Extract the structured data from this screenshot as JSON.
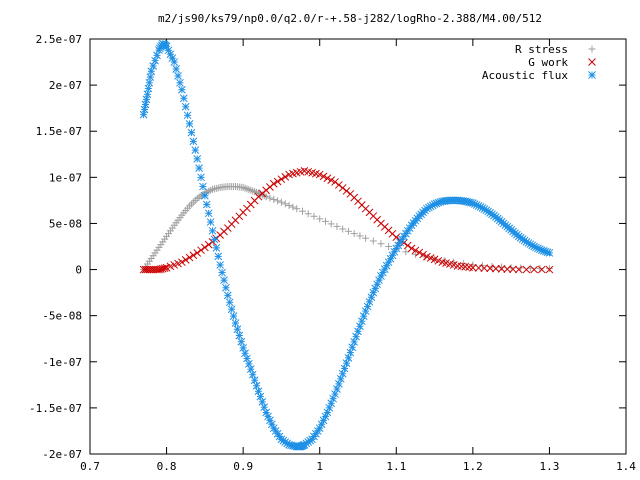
{
  "chart_data": {
    "type": "scatter",
    "title": "m2/js90/ks79/np0.0/q2.0/r-+.58-j282/logRho-2.388/M4.00/512",
    "xlabel": "",
    "ylabel": "",
    "xlim": [
      0.7,
      1.4
    ],
    "ylim": [
      -2e-07,
      2.5e-07
    ],
    "x_ticks": [
      "0.7",
      "0.8",
      "0.9",
      "1",
      "1.1",
      "1.2",
      "1.3",
      "1.4"
    ],
    "x_tick_values": [
      0.7,
      0.8,
      0.9,
      1.0,
      1.1,
      1.2,
      1.3,
      1.4
    ],
    "y_ticks": [
      "2.5e-07",
      "2e-07",
      "1.5e-07",
      "1e-07",
      "5e-08",
      "0",
      "-5e-08",
      "-1e-07",
      "-1.5e-07",
      "-2e-07"
    ],
    "y_tick_values": [
      2.5e-07,
      2e-07,
      1.5e-07,
      1e-07,
      5e-08,
      0,
      -5e-08,
      -1e-07,
      -1.5e-07,
      -2e-07
    ],
    "legend_position": "top-right",
    "grid": false,
    "series": [
      {
        "name": "R stress",
        "color": "#a0a0a0",
        "marker": "plus",
        "x": [
          0.77,
          0.78,
          0.79,
          0.8,
          0.81,
          0.82,
          0.83,
          0.84,
          0.85,
          0.86,
          0.87,
          0.88,
          0.89,
          0.9,
          0.91,
          0.92,
          0.93,
          0.95,
          0.97,
          1.0,
          1.03,
          1.06,
          1.1,
          1.15,
          1.2,
          1.25,
          1.3
        ],
        "y": [
          0,
          1.2e-08,
          2.4e-08,
          3.6e-08,
          4.8e-08,
          5.9e-08,
          6.9e-08,
          7.7e-08,
          8.3e-08,
          8.7e-08,
          8.9e-08,
          9e-08,
          9e-08,
          8.9e-08,
          8.6e-08,
          8.3e-08,
          7.9e-08,
          7.3e-08,
          6.6e-08,
          5.5e-08,
          4.4e-08,
          3.4e-08,
          2.2e-08,
          1.1e-08,
          5e-09,
          2e-09,
          1e-09
        ]
      },
      {
        "name": "G work",
        "color": "#cc0000",
        "marker": "cross",
        "x": [
          0.77,
          0.78,
          0.79,
          0.8,
          0.82,
          0.84,
          0.86,
          0.88,
          0.9,
          0.92,
          0.94,
          0.96,
          0.98,
          1.0,
          1.02,
          1.04,
          1.06,
          1.08,
          1.1,
          1.12,
          1.14,
          1.16,
          1.18,
          1.2,
          1.23,
          1.26,
          1.3
        ],
        "y": [
          0,
          0,
          0,
          2e-09,
          8e-09,
          1.8e-08,
          3e-08,
          4.5e-08,
          6.2e-08,
          7.9e-08,
          9.3e-08,
          1.03e-07,
          1.07e-07,
          1.03e-07,
          9.5e-08,
          8.2e-08,
          6.6e-08,
          5e-08,
          3.5e-08,
          2.3e-08,
          1.4e-08,
          8e-09,
          4e-09,
          2e-09,
          1e-09,
          0,
          0
        ]
      },
      {
        "name": "Acoustic flux",
        "color": "#1e90e6",
        "marker": "star",
        "x": [
          0.77,
          0.775,
          0.78,
          0.79,
          0.795,
          0.8,
          0.81,
          0.82,
          0.83,
          0.84,
          0.85,
          0.86,
          0.87,
          0.88,
          0.89,
          0.9,
          0.91,
          0.92,
          0.93,
          0.94,
          0.95,
          0.96,
          0.97,
          0.975,
          0.98,
          0.99,
          1.0,
          1.01,
          1.02,
          1.03,
          1.04,
          1.05,
          1.06,
          1.07,
          1.08,
          1.09,
          1.1,
          1.11,
          1.12,
          1.13,
          1.14,
          1.15,
          1.16,
          1.17,
          1.18,
          1.19,
          1.2,
          1.21,
          1.22,
          1.23,
          1.24,
          1.25,
          1.26,
          1.27,
          1.28,
          1.29,
          1.3
        ],
        "y": [
          1.68e-07,
          1.9e-07,
          2.15e-07,
          2.38e-07,
          2.45e-07,
          2.42e-07,
          2.25e-07,
          1.95e-07,
          1.58e-07,
          1.2e-07,
          8e-08,
          4.2e-08,
          5e-09,
          -2.8e-08,
          -5.8e-08,
          -8.5e-08,
          -1.08e-07,
          -1.32e-07,
          -1.55e-07,
          -1.72e-07,
          -1.84e-07,
          -1.9e-07,
          -1.92e-07,
          -1.92e-07,
          -1.9e-07,
          -1.84e-07,
          -1.72e-07,
          -1.55e-07,
          -1.35e-07,
          -1.13e-07,
          -9e-08,
          -6.7e-08,
          -4.5e-08,
          -2.5e-08,
          -7e-09,
          8e-09,
          2.3e-08,
          3.6e-08,
          4.8e-08,
          5.8e-08,
          6.6e-08,
          7.1e-08,
          7.4e-08,
          7.5e-08,
          7.5e-08,
          7.4e-08,
          7.2e-08,
          6.8e-08,
          6.3e-08,
          5.7e-08,
          5e-08,
          4.3e-08,
          3.6e-08,
          3e-08,
          2.5e-08,
          2.1e-08,
          1.8e-08
        ]
      }
    ]
  }
}
